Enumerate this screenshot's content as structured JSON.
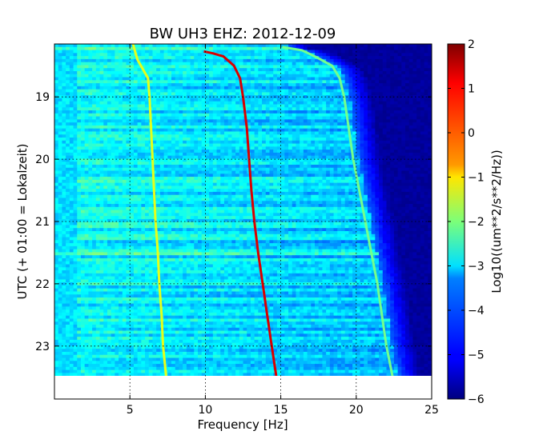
{
  "chart_data": {
    "type": "heatmap",
    "title": "BW UH3 EHZ: 2012-12-09",
    "xlabel": "Frequency [Hz]",
    "ylabel": "UTC (+ 01:00 = Lokalzeit)",
    "xlim": [
      0,
      25
    ],
    "ylim_hours_top_to_bottom": [
      18.15,
      23.85
    ],
    "data_end_hour": 23.48,
    "x_ticks": [
      5,
      10,
      15,
      20,
      25
    ],
    "x_tick_labels": [
      "5",
      "10",
      "15",
      "20",
      "25"
    ],
    "y_ticks": [
      19,
      20,
      21,
      22,
      23
    ],
    "y_tick_labels": [
      "19",
      "20",
      "21",
      "22",
      "23"
    ],
    "grid": true,
    "colormap": "jet",
    "colorbar": {
      "label": "Log10((um**2/s**2/Hz))",
      "range": [
        -6,
        2
      ],
      "ticks": [
        2,
        1,
        0,
        -1,
        -2,
        -3,
        -4,
        -5,
        -6
      ],
      "tick_labels": [
        "2",
        "1",
        "0",
        "−1",
        "−2",
        "−3",
        "−4",
        "−5",
        "−6"
      ]
    },
    "spectral_lines": [
      {
        "name": "line_low",
        "level": -1.2,
        "points": [
          [
            5.2,
            18.15
          ],
          [
            5.5,
            18.4
          ],
          [
            6.2,
            18.7
          ],
          [
            6.3,
            19.0
          ],
          [
            6.4,
            19.5
          ],
          [
            6.5,
            20.0
          ],
          [
            6.6,
            20.5
          ],
          [
            6.7,
            21.0
          ],
          [
            6.85,
            21.5
          ],
          [
            6.95,
            22.0
          ],
          [
            7.1,
            22.5
          ],
          [
            7.2,
            23.0
          ],
          [
            7.4,
            23.48
          ]
        ]
      },
      {
        "name": "line_mid",
        "level": 1.3,
        "points": [
          [
            9.9,
            18.27
          ],
          [
            10.5,
            18.3
          ],
          [
            11.2,
            18.35
          ],
          [
            11.9,
            18.5
          ],
          [
            12.3,
            18.7
          ],
          [
            12.5,
            19.0
          ],
          [
            12.75,
            19.5
          ],
          [
            12.9,
            20.0
          ],
          [
            13.05,
            20.5
          ],
          [
            13.25,
            21.0
          ],
          [
            13.5,
            21.5
          ],
          [
            13.8,
            22.0
          ],
          [
            14.1,
            22.5
          ],
          [
            14.4,
            23.0
          ],
          [
            14.7,
            23.48
          ]
        ]
      },
      {
        "name": "line_high",
        "level": -2.1,
        "points": [
          [
            15.1,
            18.2
          ],
          [
            16.4,
            18.25
          ],
          [
            17.5,
            18.38
          ],
          [
            18.4,
            18.5
          ],
          [
            18.9,
            18.7
          ],
          [
            19.2,
            19.0
          ],
          [
            19.5,
            19.5
          ],
          [
            19.8,
            20.0
          ],
          [
            20.2,
            20.5
          ],
          [
            20.6,
            21.0
          ],
          [
            21.0,
            21.5
          ],
          [
            21.4,
            22.0
          ],
          [
            21.7,
            22.5
          ],
          [
            22.0,
            23.0
          ],
          [
            22.4,
            23.48
          ]
        ]
      }
    ],
    "bright_band_hours": [
      18.2,
      21.5
    ]
  }
}
